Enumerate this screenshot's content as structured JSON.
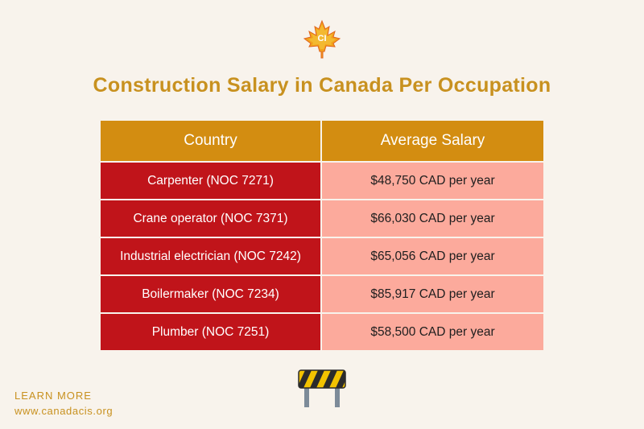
{
  "logo": {
    "text": "CI"
  },
  "title": "Construction Salary in Canada Per Occupation",
  "table": {
    "headers": [
      "Country",
      "Average Salary"
    ],
    "rows": [
      {
        "occupation": "Carpenter (NOC 7271)",
        "salary": "$48,750 CAD per year"
      },
      {
        "occupation": "Crane operator (NOC 7371)",
        "salary": "$66,030 CAD per year"
      },
      {
        "occupation": "Industrial electrician (NOC 7242)",
        "salary": "$65,056 CAD per year"
      },
      {
        "occupation": "Boilermaker (NOC 7234)",
        "salary": "$85,917 CAD per year"
      },
      {
        "occupation": "Plumber (NOC 7251)",
        "salary": "$58,500 CAD per year"
      }
    ]
  },
  "footer": {
    "learn_more": "LEARN MORE",
    "website": "www.canadacis.org"
  },
  "icons": {
    "logo": "maple-leaf-icon",
    "barrier": "construction-barrier-icon"
  },
  "colors": {
    "accent": "#c8911f",
    "header_bg": "#d38d11",
    "row_left_bg": "#c0141a",
    "row_right_bg": "#fcaa9c",
    "background": "#f8f3ec"
  }
}
